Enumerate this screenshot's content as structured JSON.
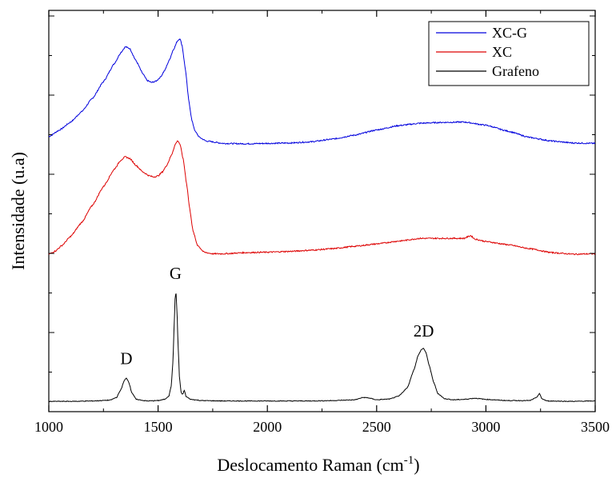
{
  "chart_data": {
    "type": "line",
    "xlabel": "Deslocamento Raman (cm",
    "xlabel_sup": "-1",
    "xlabel_close": ")",
    "ylabel": "Intensidade (u.a)",
    "xlim": [
      1000,
      3500
    ],
    "ylim": [
      0,
      100
    ],
    "x_ticks": [
      "1000",
      "1500",
      "2000",
      "2500",
      "3000",
      "3500"
    ],
    "x_tick_values": [
      1000,
      1500,
      2000,
      2500,
      3000,
      3500
    ],
    "grid": false,
    "y_tick_labels": false,
    "legend_position": "top-right",
    "legend": [
      "XC-G",
      "XC",
      "Grafeno"
    ],
    "annotations": [
      {
        "text": "D",
        "x": 1355,
        "y": 12
      },
      {
        "text": "G",
        "x": 1580,
        "y": 33.5
      },
      {
        "text": "2D",
        "x": 2715,
        "y": 19
      }
    ],
    "series": [
      {
        "name": "XC-G",
        "color": "#0000dd",
        "points": [
          [
            1000,
            69.5
          ],
          [
            1050,
            71.2
          ],
          [
            1100,
            73.2
          ],
          [
            1150,
            75.8
          ],
          [
            1200,
            79.2
          ],
          [
            1250,
            83.4
          ],
          [
            1300,
            88.0
          ],
          [
            1330,
            90.8
          ],
          [
            1350,
            92.2
          ],
          [
            1370,
            91.8
          ],
          [
            1400,
            88.6
          ],
          [
            1430,
            85.4
          ],
          [
            1450,
            83.7
          ],
          [
            1470,
            83.2
          ],
          [
            1490,
            83.5
          ],
          [
            1510,
            84.5
          ],
          [
            1530,
            86.2
          ],
          [
            1550,
            88.7
          ],
          [
            1570,
            91.5
          ],
          [
            1590,
            93.8
          ],
          [
            1600,
            94.3
          ],
          [
            1610,
            92.5
          ],
          [
            1625,
            86.5
          ],
          [
            1640,
            78.8
          ],
          [
            1655,
            73.5
          ],
          [
            1670,
            70.8
          ],
          [
            1690,
            69.3
          ],
          [
            1720,
            68.4
          ],
          [
            1800,
            67.8
          ],
          [
            1900,
            67.7
          ],
          [
            2000,
            67.8
          ],
          [
            2100,
            67.9
          ],
          [
            2200,
            68.2
          ],
          [
            2300,
            68.9
          ],
          [
            2400,
            69.9
          ],
          [
            2500,
            71.2
          ],
          [
            2600,
            72.3
          ],
          [
            2700,
            72.9
          ],
          [
            2800,
            73.1
          ],
          [
            2900,
            73.2
          ],
          [
            3000,
            72.4
          ],
          [
            3100,
            70.9
          ],
          [
            3200,
            69.3
          ],
          [
            3300,
            68.4
          ],
          [
            3400,
            67.9
          ],
          [
            3500,
            67.8
          ]
        ]
      },
      {
        "name": "XC",
        "color": "#dd0000",
        "points": [
          [
            1000,
            39.8
          ],
          [
            1030,
            40.6
          ],
          [
            1060,
            42.0
          ],
          [
            1100,
            44.3
          ],
          [
            1150,
            47.8
          ],
          [
            1200,
            52.2
          ],
          [
            1250,
            56.9
          ],
          [
            1300,
            61.3
          ],
          [
            1330,
            63.6
          ],
          [
            1350,
            64.4
          ],
          [
            1370,
            64.0
          ],
          [
            1400,
            62.2
          ],
          [
            1430,
            60.6
          ],
          [
            1460,
            59.6
          ],
          [
            1480,
            59.3
          ],
          [
            1500,
            59.6
          ],
          [
            1520,
            60.6
          ],
          [
            1540,
            62.3
          ],
          [
            1560,
            64.7
          ],
          [
            1580,
            67.7
          ],
          [
            1590,
            68.5
          ],
          [
            1600,
            67.6
          ],
          [
            1615,
            63.8
          ],
          [
            1630,
            57.8
          ],
          [
            1645,
            51.2
          ],
          [
            1660,
            45.6
          ],
          [
            1680,
            42.1
          ],
          [
            1710,
            40.3
          ],
          [
            1750,
            39.9
          ],
          [
            1800,
            39.9
          ],
          [
            1900,
            40.2
          ],
          [
            2000,
            40.3
          ],
          [
            2100,
            40.5
          ],
          [
            2200,
            40.8
          ],
          [
            2300,
            41.2
          ],
          [
            2400,
            41.8
          ],
          [
            2500,
            42.4
          ],
          [
            2600,
            43.1
          ],
          [
            2700,
            43.8
          ],
          [
            2800,
            43.8
          ],
          [
            2900,
            43.8
          ],
          [
            2930,
            44.5
          ],
          [
            2950,
            43.6
          ],
          [
            3000,
            43.0
          ],
          [
            3100,
            42.2
          ],
          [
            3200,
            41.2
          ],
          [
            3300,
            40.2
          ],
          [
            3400,
            39.8
          ],
          [
            3500,
            39.9
          ]
        ]
      },
      {
        "name": "Grafeno",
        "color": "#000000",
        "points": [
          [
            1000,
            2.6
          ],
          [
            1100,
            2.6
          ],
          [
            1200,
            2.7
          ],
          [
            1280,
            2.9
          ],
          [
            1310,
            3.6
          ],
          [
            1330,
            5.6
          ],
          [
            1345,
            7.8
          ],
          [
            1355,
            8.5
          ],
          [
            1365,
            7.6
          ],
          [
            1380,
            4.8
          ],
          [
            1400,
            3.1
          ],
          [
            1450,
            2.7
          ],
          [
            1500,
            2.8
          ],
          [
            1530,
            3.1
          ],
          [
            1550,
            4.0
          ],
          [
            1560,
            6.5
          ],
          [
            1568,
            12.5
          ],
          [
            1574,
            22.5
          ],
          [
            1578,
            29.0
          ],
          [
            1582,
            30.2
          ],
          [
            1586,
            26.0
          ],
          [
            1592,
            16.0
          ],
          [
            1598,
            8.5
          ],
          [
            1606,
            4.6
          ],
          [
            1613,
            4.4
          ],
          [
            1620,
            5.4
          ],
          [
            1628,
            3.8
          ],
          [
            1650,
            3.1
          ],
          [
            1700,
            2.8
          ],
          [
            1800,
            2.7
          ],
          [
            1900,
            2.7
          ],
          [
            2000,
            2.7
          ],
          [
            2100,
            2.7
          ],
          [
            2200,
            2.7
          ],
          [
            2300,
            2.8
          ],
          [
            2400,
            3.0
          ],
          [
            2440,
            3.6
          ],
          [
            2460,
            3.5
          ],
          [
            2500,
            3.0
          ],
          [
            2560,
            3.2
          ],
          [
            2600,
            3.9
          ],
          [
            2640,
            6.0
          ],
          [
            2670,
            10.5
          ],
          [
            2690,
            14.2
          ],
          [
            2705,
            15.7
          ],
          [
            2715,
            16.0
          ],
          [
            2725,
            15.0
          ],
          [
            2740,
            11.8
          ],
          [
            2760,
            7.6
          ],
          [
            2780,
            4.6
          ],
          [
            2810,
            3.3
          ],
          [
            2850,
            3.0
          ],
          [
            2900,
            3.1
          ],
          [
            2950,
            3.4
          ],
          [
            3000,
            3.1
          ],
          [
            3100,
            2.8
          ],
          [
            3200,
            2.8
          ],
          [
            3230,
            3.5
          ],
          [
            3245,
            4.6
          ],
          [
            3255,
            3.3
          ],
          [
            3280,
            2.7
          ],
          [
            3400,
            2.6
          ],
          [
            3500,
            2.7
          ]
        ]
      }
    ]
  }
}
